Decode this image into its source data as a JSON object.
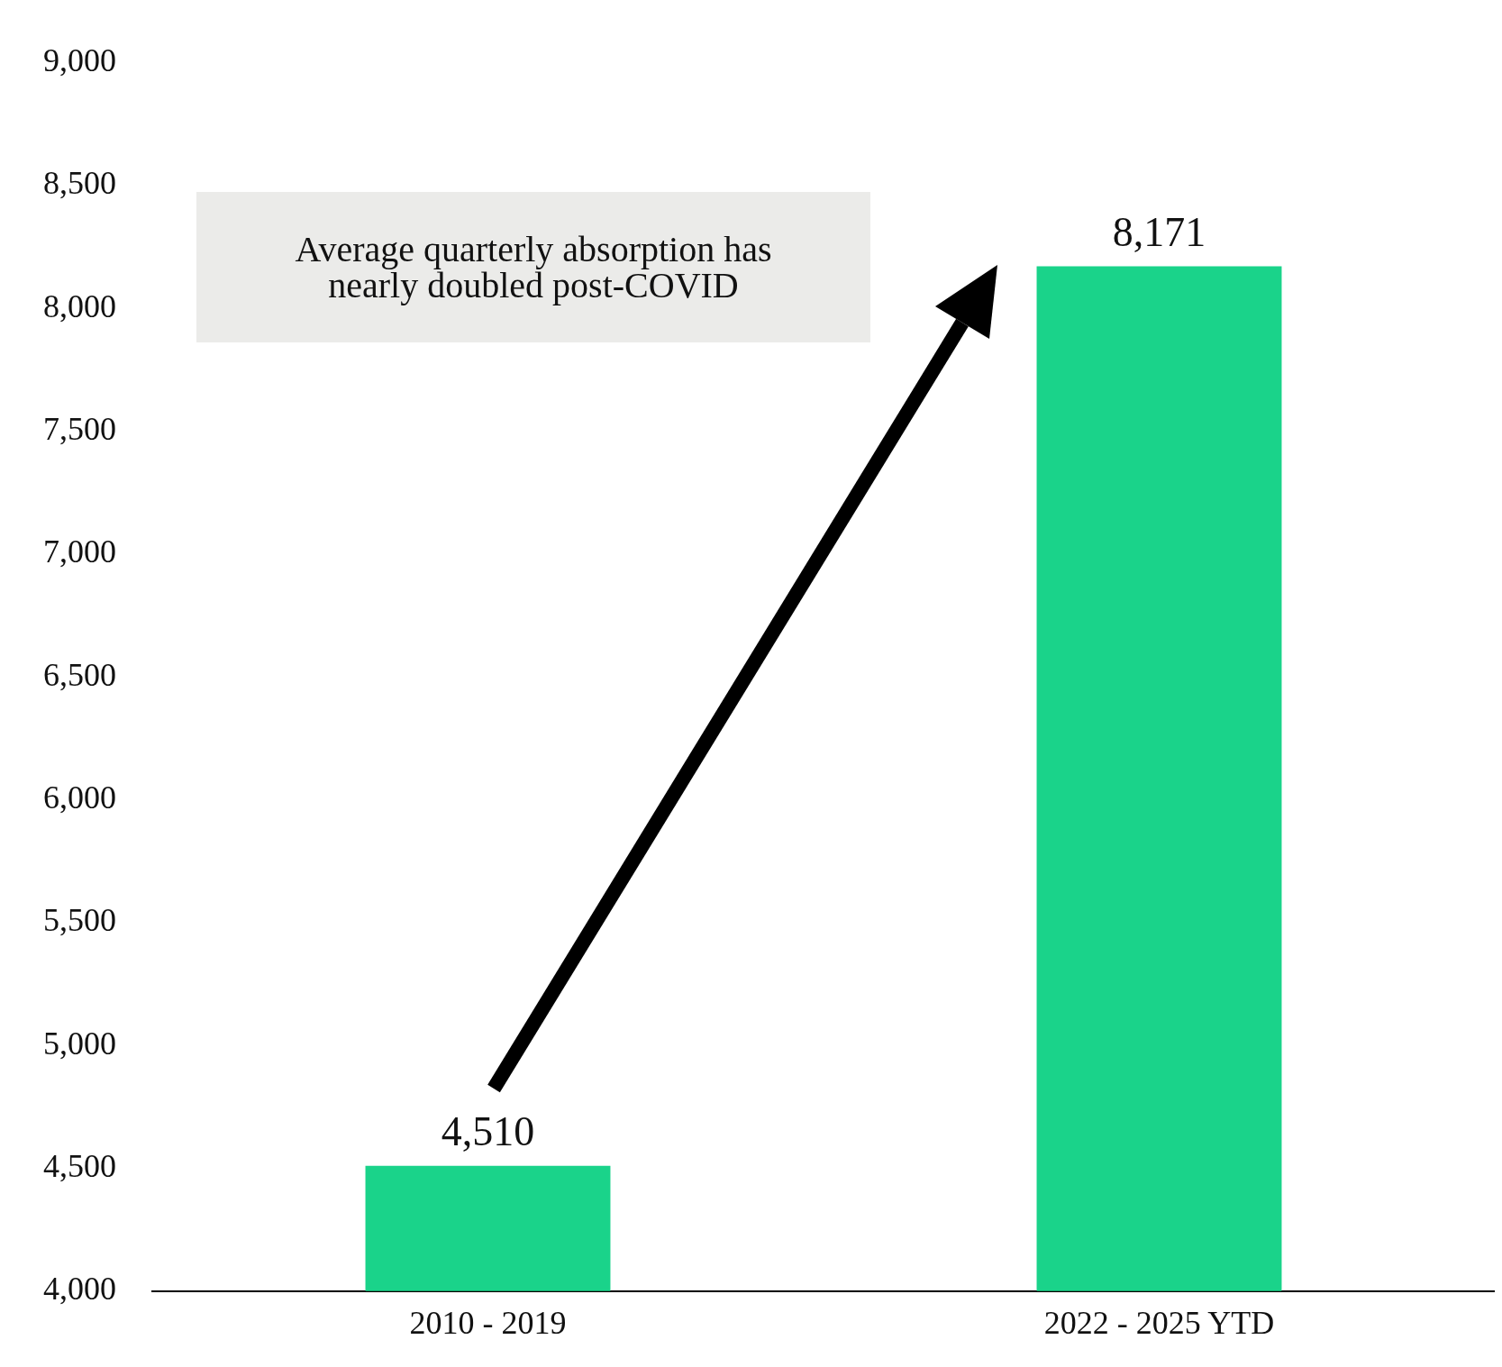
{
  "chart_data": {
    "type": "bar",
    "categories": [
      "2010 - 2019",
      "2022 - 2025 YTD"
    ],
    "values": [
      4510,
      8171
    ],
    "color": "#1ad38a",
    "ylim": [
      4000,
      9000
    ],
    "yticks": [
      {
        "value": 4000,
        "label": "4,000"
      },
      {
        "value": 4500,
        "label": "4,500"
      },
      {
        "value": 5000,
        "label": "5,000"
      },
      {
        "value": 5500,
        "label": "5,500"
      },
      {
        "value": 6000,
        "label": "6,000"
      },
      {
        "value": 6500,
        "label": "6,500"
      },
      {
        "value": 7000,
        "label": "7,000"
      },
      {
        "value": 7500,
        "label": "7,500"
      },
      {
        "value": 8000,
        "label": "8,000"
      },
      {
        "value": 8500,
        "label": "8,500"
      },
      {
        "value": 9000,
        "label": "9,000"
      }
    ],
    "value_labels": [
      "4,510",
      "8,171"
    ],
    "grid": false,
    "annotations": [
      "Average quarterly absorption has nearly doubled post-COVID"
    ]
  }
}
